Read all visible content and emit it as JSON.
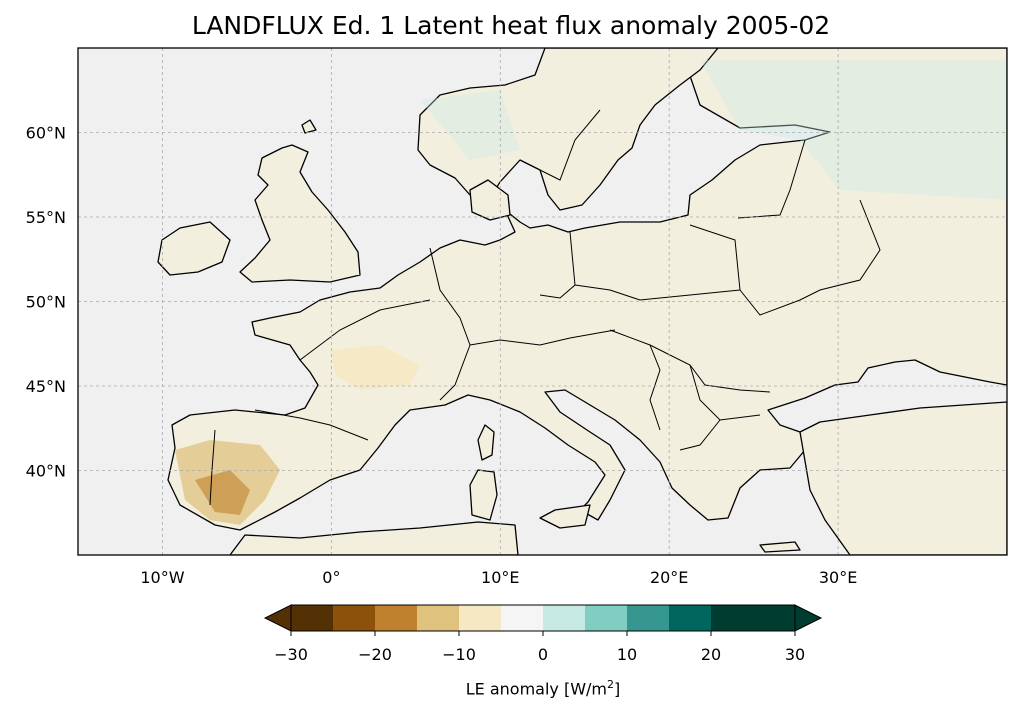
{
  "title": "LANDFLUX Ed. 1 Latent heat flux anomaly 2005-02",
  "map": {
    "lon_range": [
      -15,
      40
    ],
    "lat_range": [
      35,
      65
    ],
    "lon_ticks": [
      {
        "value": -10,
        "label": "10°W"
      },
      {
        "value": 0,
        "label": "0°"
      },
      {
        "value": 10,
        "label": "10°E"
      },
      {
        "value": 20,
        "label": "20°E"
      },
      {
        "value": 30,
        "label": "30°E"
      }
    ],
    "lat_ticks": [
      {
        "value": 60,
        "label": "60°N"
      },
      {
        "value": 55,
        "label": "55°N"
      },
      {
        "value": 50,
        "label": "50°N"
      },
      {
        "value": 45,
        "label": "45°N"
      },
      {
        "value": 40,
        "label": "40°N"
      }
    ],
    "ocean_color": "#f0f0f0",
    "land_color": "#f3efdf",
    "gridlines": true
  },
  "colorbar": {
    "label_text": "LE anomaly [W/m",
    "label_sup": "2",
    "label_end": "]",
    "ticks": [
      {
        "value": -30,
        "label": "−30"
      },
      {
        "value": -20,
        "label": "−20"
      },
      {
        "value": -10,
        "label": "−10"
      },
      {
        "value": 0,
        "label": "0"
      },
      {
        "value": 10,
        "label": "10"
      },
      {
        "value": 20,
        "label": "20"
      },
      {
        "value": 30,
        "label": "30"
      }
    ],
    "range": [
      -30,
      30
    ],
    "boundaries": [
      -30,
      -25,
      -20,
      -15,
      -10,
      -5,
      0,
      5,
      10,
      15,
      20,
      25,
      30
    ],
    "colors": [
      "#543005",
      "#8c510a",
      "#bf812d",
      "#dfc27d",
      "#f6e8c3",
      "#f5f5f5",
      "#c7eae5",
      "#80cdc1",
      "#35978f",
      "#01665e",
      "#003c30",
      "#003c30"
    ],
    "extend_under_color": "#543005",
    "extend_over_color": "#003c30"
  }
}
